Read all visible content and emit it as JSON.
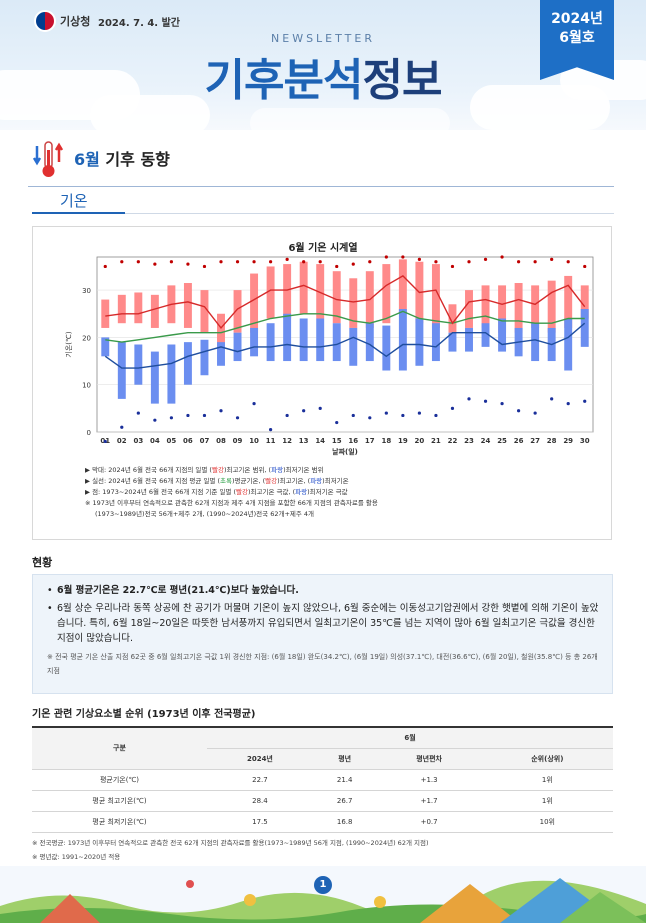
{
  "header": {
    "agency": "기상청",
    "date": "2024. 7. 4. 발간",
    "newsletter": "NEWSLETTER",
    "title_part1": "기후분석",
    "title_part2": "정보",
    "issue_year": "2024년",
    "issue_month": "6월호"
  },
  "section": {
    "title_month": "6월",
    "title_rest": " 기후 동향",
    "tab": "기온"
  },
  "chart_data": {
    "type": "bar",
    "title": "6월 기온 시계열",
    "xlabel": "날짜(일)",
    "ylabel": "기온(℃)",
    "ylim": [
      0,
      37
    ],
    "yticks": [
      0,
      10,
      20,
      30
    ],
    "categories": [
      "01",
      "02",
      "03",
      "04",
      "05",
      "06",
      "07",
      "08",
      "09",
      "10",
      "11",
      "12",
      "13",
      "14",
      "15",
      "16",
      "17",
      "18",
      "19",
      "20",
      "21",
      "22",
      "23",
      "24",
      "25",
      "26",
      "27",
      "28",
      "29",
      "30"
    ],
    "max_range": [
      [
        22,
        28
      ],
      [
        23,
        29
      ],
      [
        23,
        29.5
      ],
      [
        22,
        29
      ],
      [
        23,
        31
      ],
      [
        22,
        31.5
      ],
      [
        21,
        30
      ],
      [
        18,
        25
      ],
      [
        21,
        30
      ],
      [
        21,
        33.5
      ],
      [
        24,
        35
      ],
      [
        24,
        35.5
      ],
      [
        25,
        36
      ],
      [
        24,
        35.5
      ],
      [
        23,
        34
      ],
      [
        22,
        32.5
      ],
      [
        22,
        34
      ],
      [
        23,
        35.5
      ],
      [
        25,
        36.5
      ],
      [
        23,
        36
      ],
      [
        22,
        35.5
      ],
      [
        21,
        27
      ],
      [
        22,
        30
      ],
      [
        22,
        31
      ],
      [
        21,
        31
      ],
      [
        21,
        31.5
      ],
      [
        22,
        31
      ],
      [
        21,
        32
      ],
      [
        22,
        33
      ],
      [
        24,
        31
      ]
    ],
    "min_range": [
      [
        16,
        20
      ],
      [
        7,
        19
      ],
      [
        10,
        18.5
      ],
      [
        6,
        17
      ],
      [
        6,
        18.5
      ],
      [
        10,
        19
      ],
      [
        12,
        19.5
      ],
      [
        14,
        19
      ],
      [
        15,
        21
      ],
      [
        16,
        22
      ],
      [
        15,
        23
      ],
      [
        15,
        25
      ],
      [
        15,
        24
      ],
      [
        15,
        24
      ],
      [
        15,
        23
      ],
      [
        14,
        22
      ],
      [
        15,
        23
      ],
      [
        13,
        22.5
      ],
      [
        13,
        26
      ],
      [
        14,
        24
      ],
      [
        15,
        23
      ],
      [
        17,
        21
      ],
      [
        17,
        22
      ],
      [
        18,
        23
      ],
      [
        17,
        24
      ],
      [
        16,
        22
      ],
      [
        15,
        23
      ],
      [
        15,
        22
      ],
      [
        13,
        24
      ],
      [
        18,
        26
      ]
    ],
    "max_line": [
      24.5,
      25,
      25,
      26,
      27,
      27.5,
      26.5,
      22,
      26,
      28,
      30,
      30,
      31,
      29.5,
      28,
      27.5,
      28,
      31,
      33,
      29.5,
      30,
      23,
      27.5,
      28,
      27,
      28,
      27,
      29.5,
      31,
      26.5
    ],
    "min_line": [
      16,
      13.5,
      13.5,
      14,
      14.5,
      16,
      17,
      18,
      17,
      18,
      18,
      18.5,
      18,
      18,
      18.5,
      20,
      18.5,
      16,
      18.5,
      18.5,
      18,
      21,
      21,
      21,
      18.5,
      19,
      19.5,
      18.5,
      20,
      23
    ],
    "max_normal": [
      19.5,
      19,
      19.5,
      20,
      20.5,
      21,
      21,
      21,
      22,
      23,
      24,
      24.5,
      25,
      25,
      24.5,
      23.5,
      23,
      24,
      25.5,
      24,
      23.5,
      23,
      24,
      24.5,
      23.5,
      23.5,
      23,
      23,
      24,
      24
    ],
    "record_high": [
      35,
      36,
      36,
      35.5,
      36,
      35.5,
      35,
      36,
      36,
      36,
      36,
      36.5,
      36,
      36,
      35,
      35.5,
      36,
      37,
      37,
      36.5,
      36,
      35,
      36,
      36.5,
      37,
      36,
      36,
      36.5,
      36,
      35
    ],
    "record_low": [
      -2,
      1,
      4,
      2.5,
      3,
      3.5,
      3.5,
      4.5,
      3,
      6,
      0.5,
      3.5,
      4.5,
      5,
      2,
      3.5,
      3,
      4,
      3.5,
      4,
      3.5,
      5,
      7,
      6.5,
      6,
      4.5,
      4,
      7,
      6,
      6.5
    ],
    "colors": {
      "max_bar": "#ff8a8a",
      "min_bar": "#6b8ef0",
      "max_line": "#d62a2a",
      "min_line": "#1f4e9e",
      "normal_line": "#3a9a4a",
      "high_dot": "#c00000",
      "low_dot": "#1a2f9a"
    },
    "notes": [
      {
        "pre": "▶ 막대: 2024년 6월 전국 66개 지점의 일별 (",
        "red": "빨강",
        "mid": ")최고기온 범위, (",
        "blue": "파랑",
        "post": ")최저기온 범위"
      },
      {
        "pre": "▶ 실선: 2024년 6월 전국 66개 지점 평균 일별 (",
        "green": "초록",
        "mid": ")평균기온, (",
        "red": "빨강",
        "mid2": ")최고기온, (",
        "blue": "파랑",
        "post": ")최저기온"
      },
      {
        "pre": "▶ 점: 1973~2024년 6월 전국 66개 지점 기준 일별 (",
        "red": "빨강",
        "mid": ")최고기온 극값, (",
        "blue": "파랑",
        "post": ")최저기온 극값"
      },
      {
        "text": "※ 1973년 이후부터 연속적으로 관측한 62개 지점과 제주 4개 지점을 포함한 66개 지점의 관측자료를 활용"
      },
      {
        "text": "(1973~1989년)전국 56개+제주 2개, (1990~2024년)전국 62개+제주 4개"
      }
    ]
  },
  "status": {
    "heading": "현황",
    "bullet1": "6월 평균기온은 22.7℃로 평년(21.4℃)보다 높았습니다.",
    "bullet2": "6월 상순 우리나라 동쪽 상공에 찬 공기가 머물며 기온이 높지 않았으나, 6월 중순에는 이동성고기압권에서 강한 햇볕에 의해 기온이 높았습니다. 특히, 6월 18일~20일은 따뜻한 남서풍까지 유입되면서 일최고기온이 35℃를 넘는 지역이 많아 6월 일최고기온 극값을 경신한 지점이 많았습니다.",
    "note": "※ 전국 평균 기온 산출 지점 62곳 중 6월 일최고기온 극값 1위 경신한 지점: (6월 18일) 완도(34.2℃), (6월 19일) 의성(37.1℃), 대전(36.6℃), (6월 20일), 철원(35.8℃) 등 총 26개 지점"
  },
  "table": {
    "heading": "기온 관련 기상요소별 순위 (1973년 이후 전국평균)",
    "col_group": "구분",
    "month": "6월",
    "cols": [
      "2024년",
      "평년",
      "평년편차",
      "순위(상위)"
    ],
    "rows": [
      {
        "label": "평균기온(℃)",
        "v": [
          "22.7",
          "21.4",
          "+1.3",
          "1위"
        ]
      },
      {
        "label": "평균 최고기온(℃)",
        "v": [
          "28.4",
          "26.7",
          "+1.7",
          "1위"
        ]
      },
      {
        "label": "평균 최저기온(℃)",
        "v": [
          "17.5",
          "16.8",
          "+0.7",
          "10위"
        ]
      }
    ]
  },
  "footnotes": [
    "※ 전국평균: 1973년 이후부터 연속적으로 관측한 전국 62개 지점의 관측자료를 활용(1973~1989년 56개 지점, (1990~2024년) 62개 지점)",
    "※ 평년값: 1991~2020년 적용"
  ],
  "page": {
    "number": "1"
  }
}
